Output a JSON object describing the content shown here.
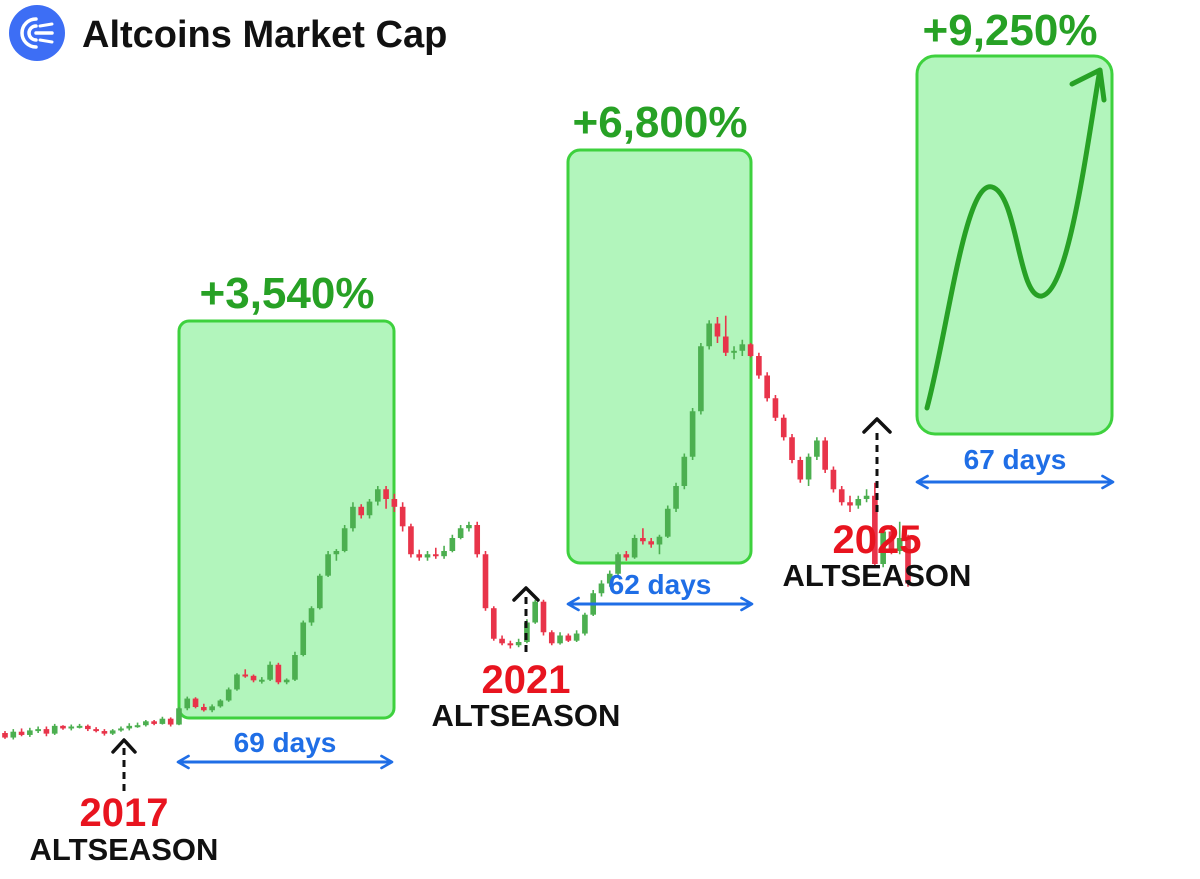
{
  "header": {
    "title": "Altcoins Market Cap",
    "logo_icon": "broadcast-icon",
    "logo_color": "#3d6ef5"
  },
  "colors": {
    "up": "#4caf50",
    "down": "#e8344a",
    "box_fill": "#b2f5bc",
    "box_stroke": "#3ed13e",
    "gain_text": "#27a125",
    "duration": "#1f6ee6",
    "year": "#e8141f",
    "label": "#111111"
  },
  "chart_data": {
    "type": "candlestick",
    "title": "Altcoins Market Cap",
    "xlabel": "",
    "ylabel": "",
    "grid": false,
    "periods": [
      {
        "gain": "+3,540%",
        "duration": "69 days",
        "year": "2017",
        "label": "ALTSEASON"
      },
      {
        "gain": "+6,800%",
        "duration": "62 days",
        "year": "2021",
        "label": "ALTSEASON"
      },
      {
        "gain": "+9,250%",
        "duration": "67 days",
        "year": "2025",
        "label": "ALTSEASON",
        "projected": true
      }
    ],
    "candles": [
      {
        "o": 2.0,
        "h": 2.3,
        "l": 1.1,
        "c": 1.3
      },
      {
        "o": 1.3,
        "h": 2.6,
        "l": 1.0,
        "c": 2.2
      },
      {
        "o": 2.2,
        "h": 2.7,
        "l": 1.5,
        "c": 1.7
      },
      {
        "o": 1.7,
        "h": 2.8,
        "l": 1.4,
        "c": 2.4
      },
      {
        "o": 2.4,
        "h": 3.0,
        "l": 2.0,
        "c": 2.6
      },
      {
        "o": 2.6,
        "h": 3.0,
        "l": 1.5,
        "c": 1.9
      },
      {
        "o": 1.9,
        "h": 3.4,
        "l": 1.7,
        "c": 3.1
      },
      {
        "o": 3.1,
        "h": 3.2,
        "l": 2.5,
        "c": 2.7
      },
      {
        "o": 2.7,
        "h": 3.3,
        "l": 2.4,
        "c": 3.0
      },
      {
        "o": 3.0,
        "h": 3.4,
        "l": 2.7,
        "c": 3.1
      },
      {
        "o": 3.1,
        "h": 3.3,
        "l": 2.3,
        "c": 2.6
      },
      {
        "o": 2.6,
        "h": 2.9,
        "l": 2.1,
        "c": 2.3
      },
      {
        "o": 2.3,
        "h": 2.6,
        "l": 1.6,
        "c": 1.9
      },
      {
        "o": 1.9,
        "h": 2.6,
        "l": 1.7,
        "c": 2.4
      },
      {
        "o": 2.4,
        "h": 3.0,
        "l": 2.2,
        "c": 2.7
      },
      {
        "o": 2.7,
        "h": 3.5,
        "l": 2.4,
        "c": 3.1
      },
      {
        "o": 3.1,
        "h": 3.6,
        "l": 2.8,
        "c": 3.2
      },
      {
        "o": 3.2,
        "h": 4.0,
        "l": 3.0,
        "c": 3.8
      },
      {
        "o": 3.8,
        "h": 4.0,
        "l": 3.2,
        "c": 3.4
      },
      {
        "o": 3.4,
        "h": 4.5,
        "l": 3.3,
        "c": 4.2
      },
      {
        "o": 4.2,
        "h": 4.4,
        "l": 3.0,
        "c": 3.3
      },
      {
        "o": 3.3,
        "h": 6.0,
        "l": 3.2,
        "c": 5.8
      },
      {
        "o": 5.8,
        "h": 7.6,
        "l": 5.5,
        "c": 7.3
      },
      {
        "o": 7.3,
        "h": 7.5,
        "l": 5.8,
        "c": 6.0
      },
      {
        "o": 6.0,
        "h": 6.5,
        "l": 5.3,
        "c": 5.5
      },
      {
        "o": 5.5,
        "h": 6.4,
        "l": 5.2,
        "c": 6.1
      },
      {
        "o": 6.1,
        "h": 7.2,
        "l": 5.9,
        "c": 7.0
      },
      {
        "o": 7.0,
        "h": 9.0,
        "l": 6.8,
        "c": 8.7
      },
      {
        "o": 8.7,
        "h": 11.2,
        "l": 8.5,
        "c": 11.0
      },
      {
        "o": 11.0,
        "h": 11.8,
        "l": 10.5,
        "c": 10.8
      },
      {
        "o": 10.8,
        "h": 11.0,
        "l": 9.8,
        "c": 10.1
      },
      {
        "o": 10.1,
        "h": 10.6,
        "l": 9.6,
        "c": 10.2
      },
      {
        "o": 10.2,
        "h": 13.0,
        "l": 10.0,
        "c": 12.5
      },
      {
        "o": 12.5,
        "h": 12.8,
        "l": 9.5,
        "c": 9.8
      },
      {
        "o": 9.8,
        "h": 10.4,
        "l": 9.5,
        "c": 10.2
      },
      {
        "o": 10.2,
        "h": 14.5,
        "l": 10.0,
        "c": 14.0
      },
      {
        "o": 14.0,
        "h": 19.3,
        "l": 13.8,
        "c": 19.0
      },
      {
        "o": 19.0,
        "h": 21.5,
        "l": 18.5,
        "c": 21.2
      },
      {
        "o": 21.2,
        "h": 26.5,
        "l": 21.0,
        "c": 26.2
      },
      {
        "o": 26.2,
        "h": 30.0,
        "l": 26.0,
        "c": 29.5
      },
      {
        "o": 29.5,
        "h": 30.3,
        "l": 28.5,
        "c": 30.0
      },
      {
        "o": 30.0,
        "h": 34.0,
        "l": 29.8,
        "c": 33.5
      },
      {
        "o": 33.5,
        "h": 37.5,
        "l": 33.0,
        "c": 36.8
      },
      {
        "o": 36.8,
        "h": 37.2,
        "l": 35.0,
        "c": 35.5
      },
      {
        "o": 35.5,
        "h": 38.0,
        "l": 35.0,
        "c": 37.6
      },
      {
        "o": 37.6,
        "h": 40.0,
        "l": 37.0,
        "c": 39.5
      },
      {
        "o": 39.5,
        "h": 40.0,
        "l": 36.5,
        "c": 38.0
      },
      {
        "o": 38.0,
        "h": 38.8,
        "l": 36.0,
        "c": 36.8
      },
      {
        "o": 36.8,
        "h": 37.5,
        "l": 33.0,
        "c": 33.8
      },
      {
        "o": 33.8,
        "h": 34.2,
        "l": 29.0,
        "c": 29.5
      },
      {
        "o": 29.5,
        "h": 30.2,
        "l": 28.5,
        "c": 29.0
      },
      {
        "o": 29.0,
        "h": 30.0,
        "l": 28.5,
        "c": 29.5
      },
      {
        "o": 29.5,
        "h": 30.5,
        "l": 28.8,
        "c": 29.2
      },
      {
        "o": 29.2,
        "h": 30.8,
        "l": 28.8,
        "c": 30.0
      },
      {
        "o": 30.0,
        "h": 32.5,
        "l": 29.8,
        "c": 32.0
      },
      {
        "o": 32.0,
        "h": 34.0,
        "l": 31.8,
        "c": 33.5
      },
      {
        "o": 33.5,
        "h": 34.5,
        "l": 33.0,
        "c": 34.0
      },
      {
        "o": 34.0,
        "h": 34.5,
        "l": 29.0,
        "c": 29.5
      },
      {
        "o": 29.5,
        "h": 30.0,
        "l": 20.8,
        "c": 21.2
      },
      {
        "o": 21.2,
        "h": 21.5,
        "l": 16.2,
        "c": 16.5
      },
      {
        "o": 16.5,
        "h": 17.0,
        "l": 15.5,
        "c": 15.8
      },
      {
        "o": 15.8,
        "h": 16.2,
        "l": 15.0,
        "c": 15.5
      },
      {
        "o": 15.5,
        "h": 16.5,
        "l": 15.2,
        "c": 16.0
      },
      {
        "o": 16.0,
        "h": 19.5,
        "l": 15.8,
        "c": 19.0
      },
      {
        "o": 19.0,
        "h": 22.5,
        "l": 18.8,
        "c": 22.2
      },
      {
        "o": 22.2,
        "h": 22.5,
        "l": 17.0,
        "c": 17.5
      },
      {
        "o": 17.5,
        "h": 17.8,
        "l": 15.5,
        "c": 15.8
      },
      {
        "o": 15.8,
        "h": 17.5,
        "l": 15.6,
        "c": 17.0
      },
      {
        "o": 17.0,
        "h": 17.3,
        "l": 16.0,
        "c": 16.2
      },
      {
        "o": 16.2,
        "h": 17.8,
        "l": 16.0,
        "c": 17.3
      },
      {
        "o": 17.3,
        "h": 20.5,
        "l": 17.0,
        "c": 20.2
      },
      {
        "o": 20.2,
        "h": 24.0,
        "l": 20.0,
        "c": 23.5
      },
      {
        "o": 23.5,
        "h": 25.5,
        "l": 23.0,
        "c": 25.0
      },
      {
        "o": 25.0,
        "h": 27.0,
        "l": 24.5,
        "c": 26.5
      },
      {
        "o": 26.5,
        "h": 29.8,
        "l": 26.0,
        "c": 29.5
      },
      {
        "o": 29.5,
        "h": 30.0,
        "l": 28.5,
        "c": 29.0
      },
      {
        "o": 29.0,
        "h": 32.5,
        "l": 28.8,
        "c": 32.0
      },
      {
        "o": 32.0,
        "h": 33.5,
        "l": 31.0,
        "c": 31.5
      },
      {
        "o": 31.5,
        "h": 32.0,
        "l": 30.5,
        "c": 31.0
      },
      {
        "o": 31.0,
        "h": 32.5,
        "l": 29.5,
        "c": 32.2
      },
      {
        "o": 32.2,
        "h": 37.0,
        "l": 32.0,
        "c": 36.5
      },
      {
        "o": 36.5,
        "h": 40.5,
        "l": 36.0,
        "c": 40.0
      },
      {
        "o": 40.0,
        "h": 45.0,
        "l": 39.5,
        "c": 44.5
      },
      {
        "o": 44.5,
        "h": 52.0,
        "l": 44.0,
        "c": 51.5
      },
      {
        "o": 51.5,
        "h": 62.0,
        "l": 51.0,
        "c": 61.5
      },
      {
        "o": 61.5,
        "h": 65.5,
        "l": 61.0,
        "c": 65.0
      },
      {
        "o": 65.0,
        "h": 66.0,
        "l": 62.0,
        "c": 63.0
      },
      {
        "o": 63.0,
        "h": 66.2,
        "l": 60.0,
        "c": 60.5
      },
      {
        "o": 60.5,
        "h": 61.5,
        "l": 59.5,
        "c": 60.8
      },
      {
        "o": 60.8,
        "h": 62.5,
        "l": 60.0,
        "c": 61.8
      },
      {
        "o": 61.8,
        "h": 62.0,
        "l": 59.8,
        "c": 60.0
      },
      {
        "o": 60.0,
        "h": 60.5,
        "l": 56.5,
        "c": 57.0
      },
      {
        "o": 57.0,
        "h": 57.5,
        "l": 53.0,
        "c": 53.5
      },
      {
        "o": 53.5,
        "h": 54.0,
        "l": 50.0,
        "c": 50.5
      },
      {
        "o": 50.5,
        "h": 51.0,
        "l": 47.0,
        "c": 47.5
      },
      {
        "o": 47.5,
        "h": 48.0,
        "l": 43.5,
        "c": 44.0
      },
      {
        "o": 44.0,
        "h": 44.5,
        "l": 40.5,
        "c": 41.0
      },
      {
        "o": 41.0,
        "h": 45.0,
        "l": 40.0,
        "c": 44.5
      },
      {
        "o": 44.5,
        "h": 47.5,
        "l": 44.0,
        "c": 47.0
      },
      {
        "o": 47.0,
        "h": 47.5,
        "l": 42.0,
        "c": 42.5
      },
      {
        "o": 42.5,
        "h": 43.0,
        "l": 39.0,
        "c": 39.5
      },
      {
        "o": 39.5,
        "h": 40.0,
        "l": 37.0,
        "c": 37.5
      },
      {
        "o": 37.5,
        "h": 38.5,
        "l": 36.0,
        "c": 37.0
      },
      {
        "o": 37.0,
        "h": 38.5,
        "l": 36.5,
        "c": 38.0
      },
      {
        "o": 38.0,
        "h": 39.5,
        "l": 37.5,
        "c": 38.5
      },
      {
        "o": 38.5,
        "h": 40.5,
        "l": 27.5,
        "c": 28.0
      },
      {
        "o": 28.0,
        "h": 33.5,
        "l": 27.5,
        "c": 33.0
      },
      {
        "o": 33.0,
        "h": 34.0,
        "l": 29.5,
        "c": 30.0
      },
      {
        "o": 30.0,
        "h": 34.5,
        "l": 29.5,
        "c": 32.0
      },
      {
        "o": 32.0,
        "h": 32.5,
        "l": 24.5,
        "c": 25.0
      }
    ]
  }
}
